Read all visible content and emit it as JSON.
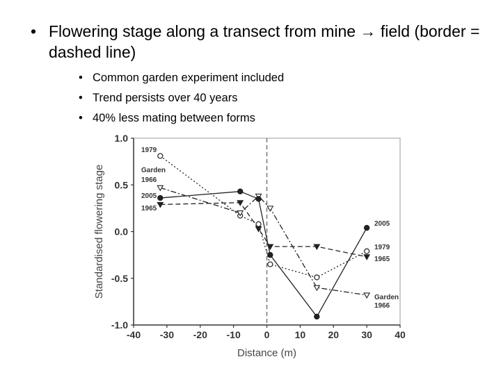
{
  "slide": {
    "main_bullet": "Flowering stage along a transect from mine → field (border = dashed line)",
    "sub_bullets": [
      "Common garden experiment included",
      "Trend persists over 40 years",
      "40% less mating between forms"
    ]
  },
  "chart_data": {
    "type": "line",
    "xlabel": "Distance (m)",
    "ylabel": "Standardised flowering stage",
    "xlim": [
      -40,
      40
    ],
    "ylim": [
      -1.0,
      1.0
    ],
    "xticks": [
      "-40",
      "-30",
      "-20",
      "-10",
      "0",
      "10",
      "20",
      "30",
      "40"
    ],
    "yticks": [
      "1.0",
      "0.5",
      "0.0",
      "-0.5",
      "-1.0"
    ],
    "border_x": 0,
    "series": [
      {
        "name": "1979",
        "marker": "open-circle",
        "line": "dotted",
        "x": [
          -32,
          -8,
          -2.5,
          1,
          15,
          30
        ],
        "y": [
          0.81,
          0.17,
          0.08,
          -0.35,
          -0.49,
          -0.21
        ]
      },
      {
        "name": "Garden 1966",
        "marker": "open-triangle-down",
        "line": "dash-dot",
        "x": [
          -32,
          -8,
          -2.5,
          1,
          15,
          30
        ],
        "y": [
          0.47,
          0.2,
          0.38,
          0.25,
          -0.6,
          -0.68
        ]
      },
      {
        "name": "2005",
        "marker": "filled-circle",
        "line": "solid",
        "x": [
          -32,
          -8,
          -2.5,
          1,
          15,
          30
        ],
        "y": [
          0.36,
          0.43,
          0.35,
          -0.25,
          -0.91,
          0.04
        ]
      },
      {
        "name": "1965",
        "marker": "filled-triangle-down",
        "line": "dashed",
        "x": [
          -32,
          -8,
          -2.5,
          1,
          15,
          30
        ],
        "y": [
          0.29,
          0.31,
          0.03,
          -0.16,
          -0.16,
          -0.27
        ]
      }
    ],
    "left_labels": [
      "1979",
      "Garden",
      "1966",
      "2005",
      "1965"
    ],
    "right_labels": [
      "2005",
      "1979",
      "1965",
      "Garden",
      "1966"
    ]
  },
  "colors": {
    "axis": "#333333",
    "series": "#222222",
    "border": "#777777"
  }
}
